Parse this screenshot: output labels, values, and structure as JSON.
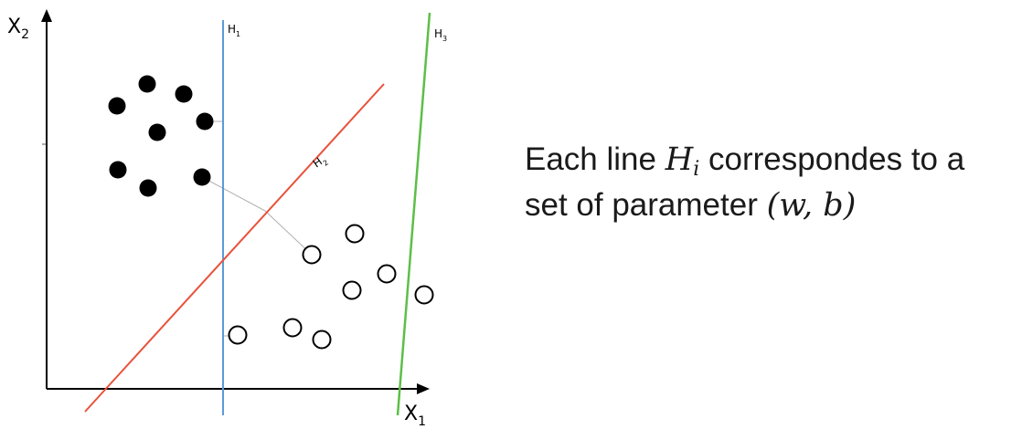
{
  "diagram": {
    "x_axis": {
      "base": "X",
      "sub": "1"
    },
    "y_axis": {
      "base": "X",
      "sub": "2"
    },
    "lines": [
      {
        "name": "H1",
        "base": "H",
        "sub": "1",
        "color": "#5b9bd5"
      },
      {
        "name": "H2",
        "base": "H",
        "sub": "2",
        "color": "#e8523a"
      },
      {
        "name": "H3",
        "base": "H",
        "sub": "3",
        "color": "#5cbf48"
      }
    ],
    "filled_points_class": "black filled circles",
    "hollow_points_class": "white hollow circles"
  },
  "caption": {
    "line1_before": "Each line ",
    "var_base": "H",
    "var_sub": "i",
    "line1_after": " correspondes to a",
    "line2_before": "set of parameter ",
    "params": "(w, b)"
  }
}
